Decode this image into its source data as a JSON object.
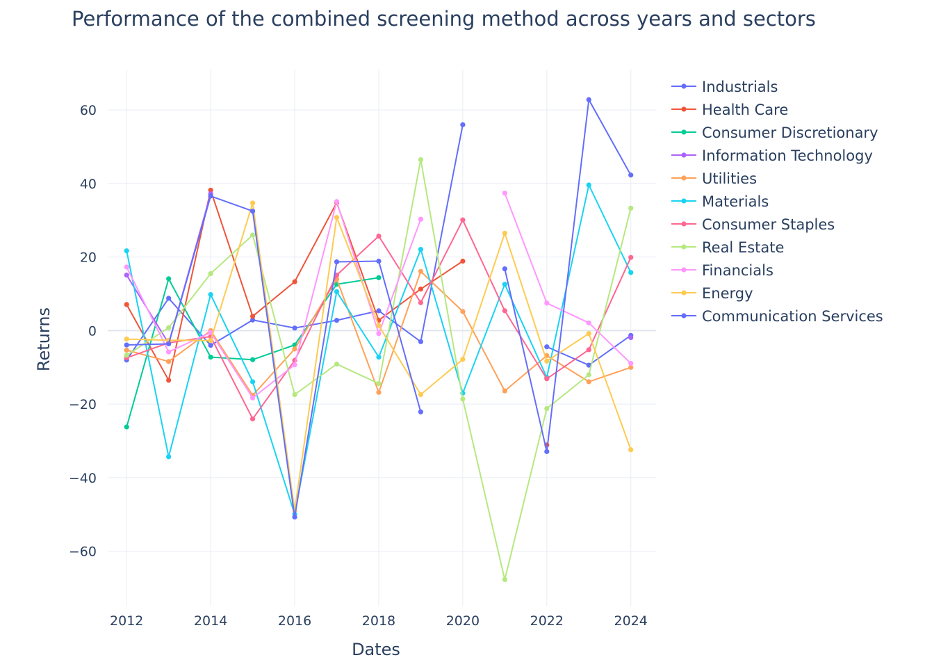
{
  "chart_data": {
    "type": "line",
    "title": "Performance of the combined screening method across years and sectors",
    "xlabel": "Dates",
    "ylabel": "Returns",
    "xlim": [
      2011.55,
      2024.6
    ],
    "ylim": [
      -75,
      71
    ],
    "xticks": [
      2012,
      2014,
      2016,
      2018,
      2020,
      2022,
      2024
    ],
    "xtick_labels": [
      "2012",
      "2014",
      "2016",
      "2018",
      "2020",
      "2022",
      "2024"
    ],
    "yticks": [
      -60,
      -40,
      -20,
      0,
      20,
      40,
      60
    ],
    "ytick_labels": [
      "−60",
      "−40",
      "−20",
      "0",
      "20",
      "40",
      "60"
    ],
    "grid": true,
    "legend_position": "right",
    "x": [
      2012,
      2013,
      2014,
      2015,
      2016,
      2017,
      2018,
      2019,
      2020,
      2021,
      2022,
      2023,
      2024
    ],
    "series": [
      {
        "name": "Industrials",
        "color": "#636efa",
        "values": [
          -8,
          8.8,
          -4,
          2.9,
          0.7,
          2.8,
          5.4,
          -3,
          56,
          null,
          -4.4,
          -9.4,
          -1.3
        ]
      },
      {
        "name": "Health Care",
        "color": "#ef553b",
        "values": [
          7.1,
          -13.5,
          38.2,
          3.9,
          13.3,
          34.8,
          2.8,
          11.3,
          18.9,
          null,
          -31.1,
          null,
          null
        ]
      },
      {
        "name": "Consumer Discretionary",
        "color": "#00cc96",
        "values": [
          -26.2,
          14.1,
          -7.2,
          -7.9,
          -3.9,
          12.6,
          14.4,
          null,
          null,
          null,
          null,
          null,
          null
        ]
      },
      {
        "name": "Information Technology",
        "color": "#ab63fa",
        "values": [
          15.1,
          -3.5,
          37.2,
          null,
          null,
          null,
          null,
          null,
          null,
          null,
          null,
          null,
          -1.9
        ]
      },
      {
        "name": "Utilities",
        "color": "#ffa15a",
        "values": [
          -5.3,
          -8.4,
          0,
          -17.6,
          -5,
          14,
          -16.8,
          16.1,
          5.2,
          -16.4,
          -6.8,
          -13.9,
          -10
        ]
      },
      {
        "name": "Materials",
        "color": "#19d3f3",
        "values": [
          21.7,
          -34.3,
          9.8,
          -13.9,
          -49.9,
          10.6,
          -7.2,
          22.1,
          -17,
          12.6,
          -12.7,
          39.6,
          15.8
        ]
      },
      {
        "name": "Consumer Staples",
        "color": "#ff6692",
        "values": [
          -7.4,
          -3.3,
          -1.6,
          -24,
          -8.1,
          15.1,
          25.7,
          7.6,
          30.1,
          5.4,
          -13.1,
          -5.2,
          19.9
        ]
      },
      {
        "name": "Real Estate",
        "color": "#b6e880",
        "values": [
          -6.7,
          0.8,
          15.5,
          26,
          -17.4,
          -9.1,
          -14.4,
          46.5,
          -18.6,
          -67.7,
          -21.2,
          -12,
          33.3
        ]
      },
      {
        "name": "Financials",
        "color": "#ff97ff",
        "values": [
          17.3,
          -5.8,
          -0.5,
          -18.3,
          -9.3,
          35.1,
          -0.8,
          30.3,
          null,
          37.4,
          7.5,
          2.1,
          -8.9
        ]
      },
      {
        "name": "Energy",
        "color": "#fecb52",
        "values": [
          -2.3,
          -2.6,
          -2.7,
          34.7,
          -48.9,
          30.8,
          1.4,
          -17.4,
          -7.8,
          26.5,
          -8.3,
          -0.8,
          -32.4
        ]
      },
      {
        "name": "Communication Services",
        "color": "#636efa",
        "values": [
          -3.9,
          -3.6,
          36.6,
          32.5,
          -50.7,
          18.7,
          18.9,
          -22.1,
          null,
          16.8,
          -32.9,
          62.8,
          42.3
        ]
      }
    ]
  }
}
